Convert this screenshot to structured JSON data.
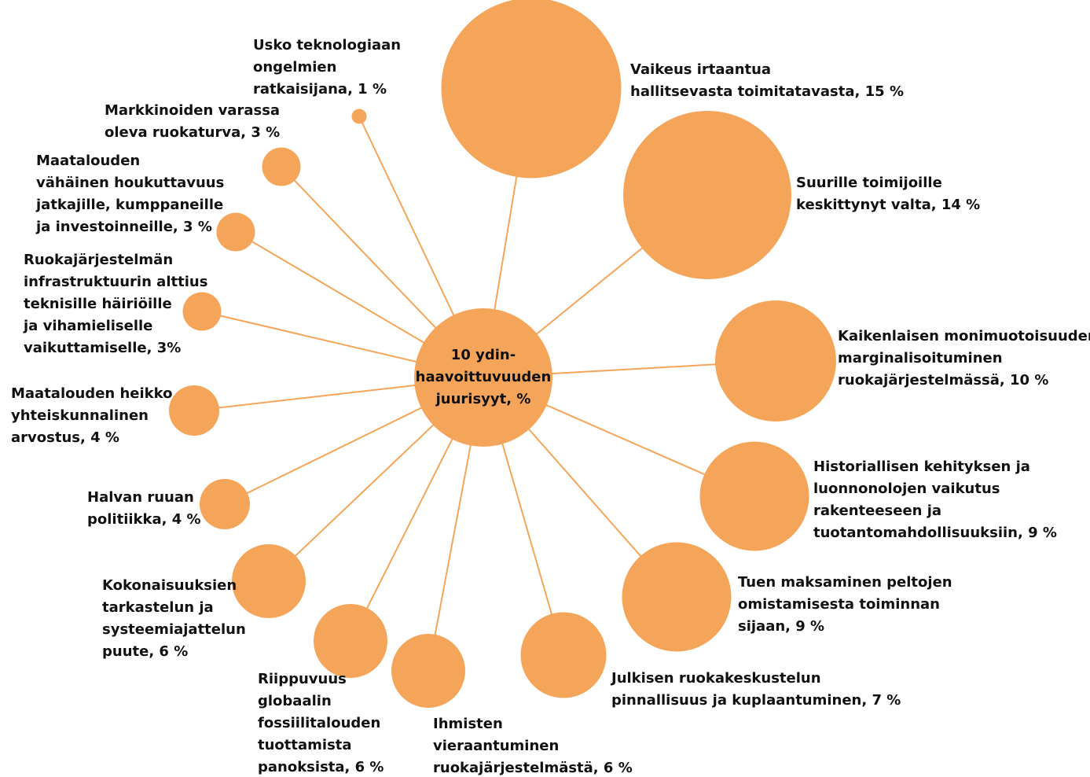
{
  "center": {
    "lines": [
      "10 ydin-",
      "haavoittuvuuden",
      "juurisyyt, %"
    ]
  },
  "nodes": [
    {
      "lines": [
        "Usko teknologiaan",
        "ongelmien",
        "ratkaisijana, 1 %"
      ],
      "value": 1
    },
    {
      "lines": [
        "Markkinoiden varassa",
        "oleva ruokaturva, 3 %"
      ],
      "value": 3
    },
    {
      "lines": [
        "Maatalouden",
        "vähäinen houkuttavuus",
        "jatkajille, kumppaneille",
        "ja investoinneille, 3 %"
      ],
      "value": 3
    },
    {
      "lines": [
        "Ruokajärjestelmän",
        "infrastruktuurin alttius",
        "teknisille häiriöille",
        "ja vihamieliselle",
        "vaikuttamiselle, 3%"
      ],
      "value": 3
    },
    {
      "lines": [
        "Maatalouden heikko",
        "yhteiskunnalinen",
        "arvostus, 4 %"
      ],
      "value": 4
    },
    {
      "lines": [
        "Halvan ruuan",
        "politiikka, 4 %"
      ],
      "value": 4
    },
    {
      "lines": [
        "Kokonaisuuksien",
        "tarkastelun ja",
        "systeemiajattelun",
        "puute, 6 %"
      ],
      "value": 6
    },
    {
      "lines": [
        "Riippuvuus",
        "globaalin",
        "fossiilitalouden",
        "tuottamista",
        "panoksista, 6 %"
      ],
      "value": 6
    },
    {
      "lines": [
        "Ihmisten",
        "vieraantuminen",
        "ruokajärjestelmästä, 6 %"
      ],
      "value": 6
    },
    {
      "lines": [
        "Julkisen ruokakeskustelun",
        "pinnallisuus ja kuplaantuminen, 7 %"
      ],
      "value": 7
    },
    {
      "lines": [
        "Tuen maksaminen peltojen",
        "omistamisesta toiminnan",
        "sijaan, 9 %"
      ],
      "value": 9
    },
    {
      "lines": [
        "Historiallisen kehityksen ja",
        "luonnonolojen vaikutus",
        "rakenteeseen ja",
        "tuotantomahdollisuuksiin, 9 %"
      ],
      "value": 9
    },
    {
      "lines": [
        "Kaikenlaisen monimuotoisuuden",
        "marginalisoituminen",
        "ruokajärjestelmässä, 10 %"
      ],
      "value": 10
    },
    {
      "lines": [
        "Suurille toimijoille",
        "keskittynyt valta, 14 %"
      ],
      "value": 14
    },
    {
      "lines": [
        "Vaikeus irtaantua",
        "hallitsevasta toimitatavasta, 15 %"
      ],
      "value": 15
    }
  ]
}
